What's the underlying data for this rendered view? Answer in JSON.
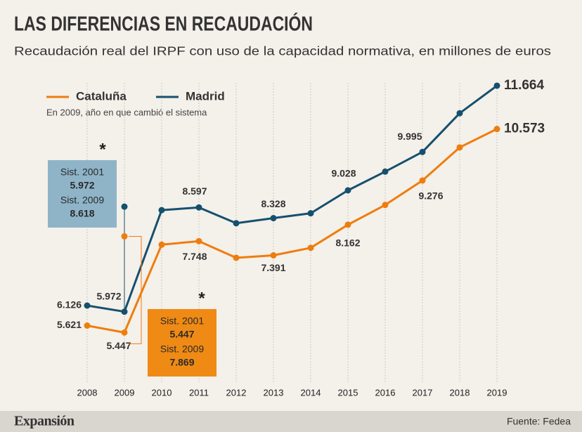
{
  "chart_data": {
    "type": "line",
    "title": "LAS DIFERENCIAS EN RECAUDACIÓN",
    "subtitle": "Recaudación real del IRPF con uso de la capacidad normativa, en millones de euros",
    "note": "En 2009, año en que cambió el sistema",
    "categories": [
      "2008",
      "2009",
      "2010",
      "2011",
      "2012",
      "2013",
      "2014",
      "2015",
      "2016",
      "2017",
      "2018",
      "2019"
    ],
    "series": [
      {
        "name": "Cataluña",
        "color": "#ee7d0e",
        "values": [
          5621,
          5447,
          7660,
          7748,
          7330,
          7391,
          7580,
          8162,
          8660,
          9276,
          10110,
          10573
        ],
        "value_labels": [
          "5.621",
          "5.447",
          null,
          "7.748",
          null,
          "7.391",
          null,
          "8.162",
          null,
          "9.276",
          null,
          "10.573"
        ]
      },
      {
        "name": "Madrid",
        "color": "#15506e",
        "values": [
          6126,
          5972,
          8530,
          8597,
          8200,
          8328,
          8450,
          9028,
          9500,
          9995,
          10970,
          11664
        ],
        "value_labels": [
          "6.126",
          "5.972",
          null,
          "8.597",
          null,
          "8.328",
          null,
          "9.028",
          null,
          "9.995",
          null,
          "11.664"
        ]
      }
    ],
    "annotations": [
      {
        "series": 1,
        "marker": "*",
        "entries": [
          {
            "label": "Sist. 2001",
            "value": 5972,
            "value_label": "5.972"
          },
          {
            "label": "Sist. 2009",
            "value": 8618,
            "value_label": "8.618"
          }
        ]
      },
      {
        "series": 0,
        "marker": "*",
        "entries": [
          {
            "label": "Sist. 2001",
            "value": 5447,
            "value_label": "5.447"
          },
          {
            "label": "Sist. 2009",
            "value": 7869,
            "value_label": "7.869"
          }
        ]
      }
    ],
    "grid": true,
    "footer": {
      "brand": "Expansión",
      "source": "Fuente: Fedea"
    }
  }
}
